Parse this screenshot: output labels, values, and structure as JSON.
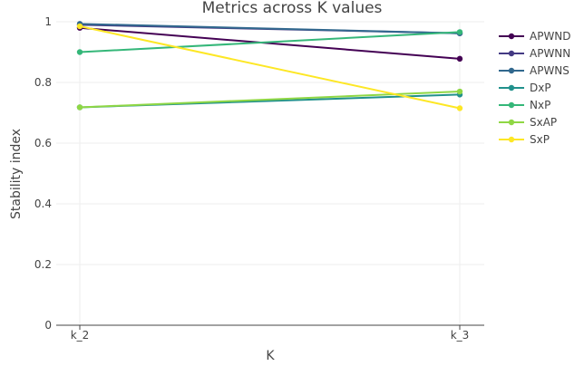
{
  "chart_data": {
    "type": "line",
    "title": "Metrics across K values",
    "xlabel": "K",
    "ylabel": "Stability index",
    "categories": [
      "k_2",
      "k_3"
    ],
    "ylim": [
      0,
      1
    ],
    "yticks": [
      0,
      0.2,
      0.4,
      0.6,
      0.8,
      1
    ],
    "ytick_labels": [
      "0",
      "0.2",
      "0.4",
      "0.6",
      "0.8",
      "1"
    ],
    "grid": true,
    "legend_position": "top-right",
    "series": [
      {
        "name": "APWND",
        "color": "#440154",
        "values": [
          0.98,
          0.878
        ]
      },
      {
        "name": "APWNN",
        "color": "#443a83",
        "values": [
          0.99,
          0.962
        ]
      },
      {
        "name": "APWNS",
        "color": "#31688e",
        "values": [
          0.993,
          0.962
        ]
      },
      {
        "name": "DxP",
        "color": "#21918c",
        "values": [
          0.718,
          0.76
        ]
      },
      {
        "name": "NxP",
        "color": "#35b779",
        "values": [
          0.9,
          0.966
        ]
      },
      {
        "name": "SxAP",
        "color": "#8fd744",
        "values": [
          0.718,
          0.77
        ]
      },
      {
        "name": "SxP",
        "color": "#fde725",
        "values": [
          0.985,
          0.715
        ]
      }
    ]
  }
}
